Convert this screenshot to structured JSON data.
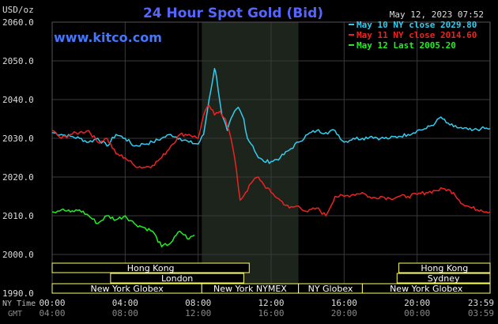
{
  "chart_data": {
    "type": "line",
    "title": "24 Hour Spot Gold (Bid)",
    "watermark": "www.kitco.com",
    "timestamp": "May 12, 2023 07:52",
    "ylabel": "USD/oz",
    "ylim": [
      1990,
      2060
    ],
    "yticks": [
      "2060.0",
      "2050.0",
      "2040.0",
      "2030.0",
      "2020.0",
      "2010.0",
      "2000.0",
      "1990.0"
    ],
    "xrange_hours": [
      0,
      24
    ],
    "xticks_ny": [
      "00:00",
      "04:00",
      "08:00",
      "12:00",
      "16:00",
      "20:00",
      "23:59"
    ],
    "xticks_gmt": [
      "04:00",
      "08:00",
      "12:00",
      "16:00",
      "20:00",
      "00:00",
      "03:59"
    ],
    "x_axis_label_ny": "NY Time",
    "x_axis_label_gmt": "GMT",
    "shaded_session_hours": [
      8.2,
      13.5
    ],
    "grid": true,
    "legend_position": "top-right",
    "series": [
      {
        "name": "May 10 NY close 2029.80",
        "color": "#33ccee",
        "x": [
          0,
          0.5,
          1,
          1.5,
          2,
          2.5,
          3,
          3.5,
          4,
          4.5,
          5,
          5.5,
          6,
          6.5,
          7,
          7.5,
          8,
          8.3,
          8.6,
          8.9,
          9.0,
          9.3,
          9.6,
          9.9,
          10.2,
          10.5,
          10.7,
          11.0,
          11.3,
          11.6,
          12.0,
          12.5,
          13,
          13.5,
          14,
          14.5,
          15,
          15.5,
          16,
          16.5,
          17,
          17.5,
          18,
          18.5,
          19,
          19.5,
          20,
          20.5,
          21,
          21.3,
          21.6,
          22,
          22.5,
          23,
          23.5,
          24
        ],
        "y": [
          2031.5,
          2031,
          2030.5,
          2030,
          2029,
          2030,
          2028,
          2031,
          2030,
          2028,
          2028.5,
          2029,
          2030,
          2031,
          2030,
          2029,
          2028.5,
          2031,
          2040,
          2048,
          2046,
          2036,
          2032,
          2036,
          2038,
          2035,
          2030,
          2028,
          2025,
          2024,
          2024,
          2025,
          2027,
          2029,
          2031,
          2032,
          2031.5,
          2032,
          2029,
          2030,
          2030,
          2030.5,
          2030,
          2030,
          2030.5,
          2031,
          2032,
          2032.5,
          2034,
          2035.5,
          2034,
          2033,
          2032.5,
          2032,
          2032.5,
          2032.5
        ]
      },
      {
        "name": "May 11 NY close 2014.60",
        "color": "#ee2222",
        "x": [
          0,
          0.5,
          1,
          1.5,
          2,
          2.5,
          3,
          3.5,
          4,
          4.5,
          5,
          5.5,
          6,
          6.5,
          7,
          7.5,
          8,
          8.3,
          8.6,
          8.9,
          9.2,
          9.5,
          9.8,
          10,
          10.3,
          10.6,
          11,
          11.3,
          11.6,
          12,
          12.5,
          13,
          13.5,
          14,
          14.5,
          15,
          15.5,
          16,
          16.5,
          17,
          17.5,
          18,
          18.5,
          19,
          19.5,
          20,
          20.5,
          21,
          21.5,
          22,
          22.5,
          23,
          23.5,
          24
        ],
        "y": [
          2032,
          2030,
          2031,
          2031.5,
          2032,
          2029,
          2030,
          2026,
          2025,
          2023,
          2022.5,
          2023,
          2025,
          2028,
          2031,
          2031,
          2030,
          2036,
          2038.5,
          2036,
          2037,
          2035,
          2030,
          2025,
          2014,
          2016,
          2019,
          2020,
          2018,
          2016,
          2014,
          2012,
          2012.5,
          2011,
          2012,
          2010,
          2015,
          2015,
          2015.5,
          2016,
          2014.5,
          2015,
          2014.5,
          2015,
          2015,
          2015.5,
          2016,
          2016.5,
          2017,
          2016,
          2013,
          2012,
          2011.5,
          2011
        ]
      },
      {
        "name": "May 12 Last 2005.20",
        "color": "#22ee22",
        "x": [
          0,
          0.5,
          1,
          1.5,
          2,
          2.5,
          3,
          3.5,
          4,
          4.5,
          5,
          5.5,
          6,
          6.5,
          7,
          7.5,
          7.8
        ],
        "y": [
          2011,
          2011.5,
          2011,
          2011.5,
          2010,
          2008,
          2010,
          2009,
          2010,
          2008,
          2007,
          2006,
          2002,
          2003,
          2006,
          2004,
          2005
        ]
      }
    ]
  },
  "sessions": [
    {
      "label": "Hong Kong",
      "row": 0,
      "start": 0,
      "end": 10.8
    },
    {
      "label": "Hong Kong",
      "row": 0,
      "start": 19.0,
      "end": 24
    },
    {
      "label": "London",
      "row": 1,
      "start": 3.2,
      "end": 10.5
    },
    {
      "label": "Sydney",
      "row": 1,
      "start": 18.9,
      "end": 24
    },
    {
      "label": "New York Globex",
      "row": 2,
      "start": 0,
      "end": 8.2
    },
    {
      "label": "New York NYMEX",
      "row": 2,
      "start": 8.2,
      "end": 13.5
    },
    {
      "label": "NY Globex",
      "row": 2,
      "start": 13.5,
      "end": 17.0
    },
    {
      "label": "New York Globex",
      "row": 2,
      "start": 17.0,
      "end": 24
    }
  ],
  "colors": {
    "grid": "#3a3a3a",
    "axis": "#cccccc",
    "title": "#5566ff",
    "watermark": "#4477ff",
    "shade": "#1c241c",
    "session_fill": "#ffffff",
    "session_border": "#ffff66"
  }
}
